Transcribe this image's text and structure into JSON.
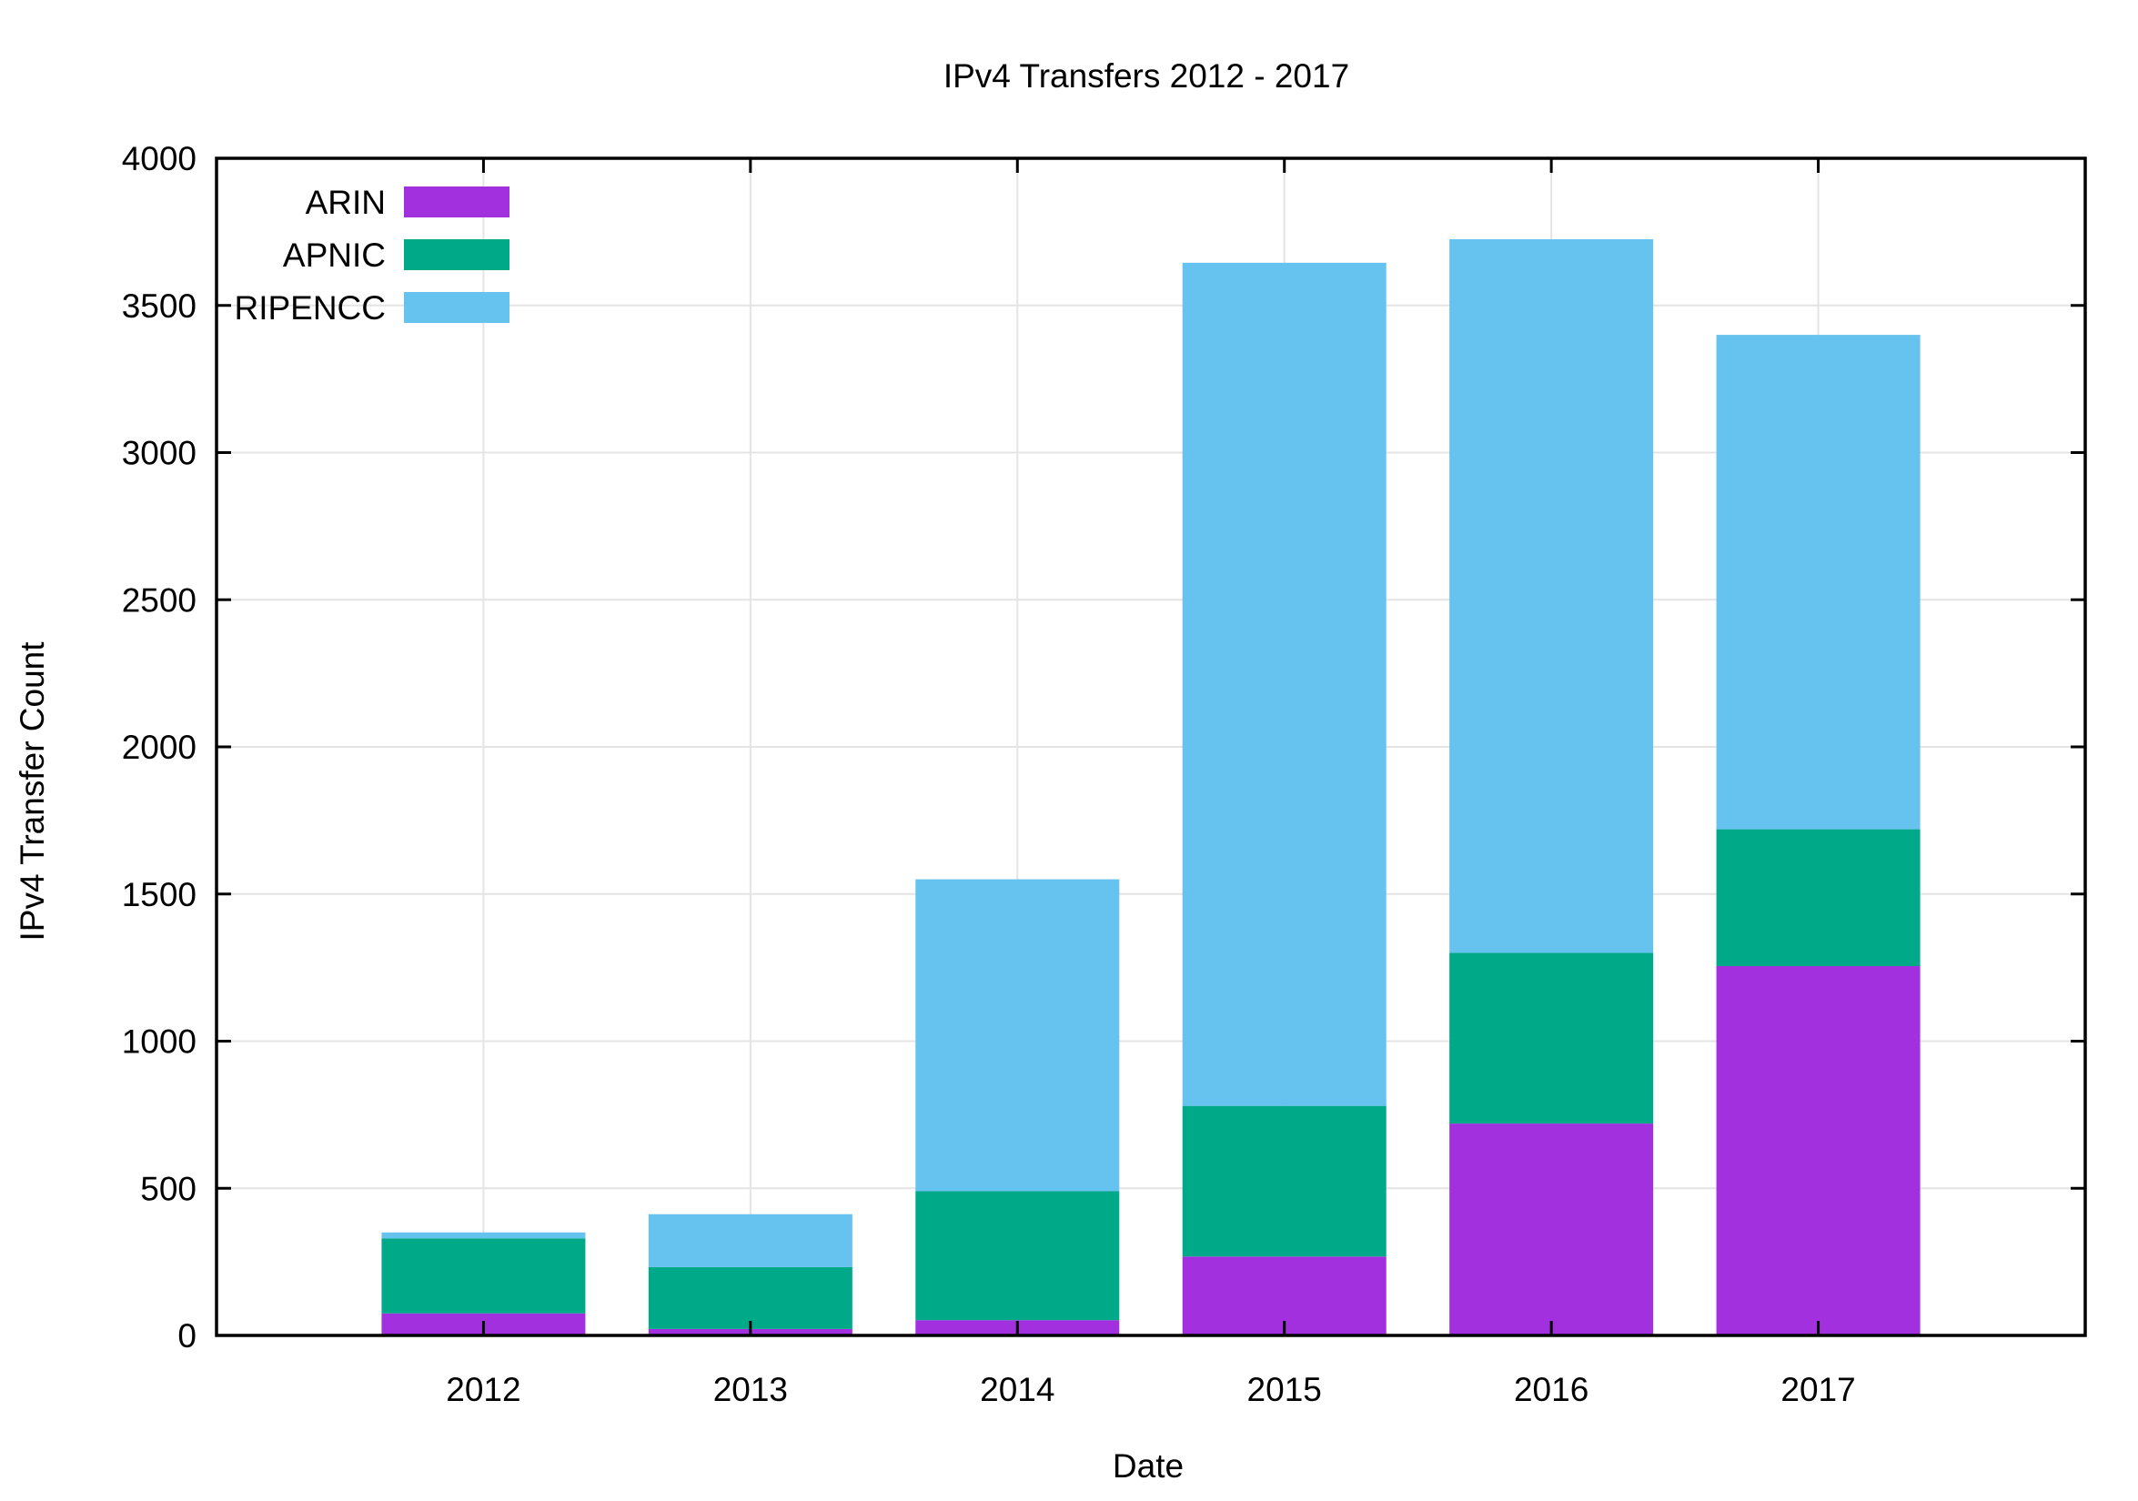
{
  "chart_data": {
    "type": "bar",
    "stacked": true,
    "title": "IPv4 Transfers 2012 - 2017",
    "xlabel": "Date",
    "ylabel": "IPv4 Transfer Count",
    "categories": [
      "2012",
      "2013",
      "2014",
      "2015",
      "2016",
      "2017"
    ],
    "ylim": [
      0,
      4000
    ],
    "yticks": [
      0,
      500,
      1000,
      1500,
      2000,
      2500,
      3000,
      3500,
      4000
    ],
    "grid": true,
    "legend_position": "top-left",
    "series": [
      {
        "name": "ARIN",
        "color": "#a330de",
        "values": [
          75,
          22,
          52,
          268,
          720,
          1255
        ]
      },
      {
        "name": "APNIC",
        "color": "#00aa88",
        "values": [
          255,
          210,
          438,
          512,
          580,
          465
        ]
      },
      {
        "name": "RIPENCC",
        "color": "#66c2ef",
        "values": [
          20,
          180,
          1060,
          2865,
          2425,
          1680
        ]
      }
    ]
  }
}
